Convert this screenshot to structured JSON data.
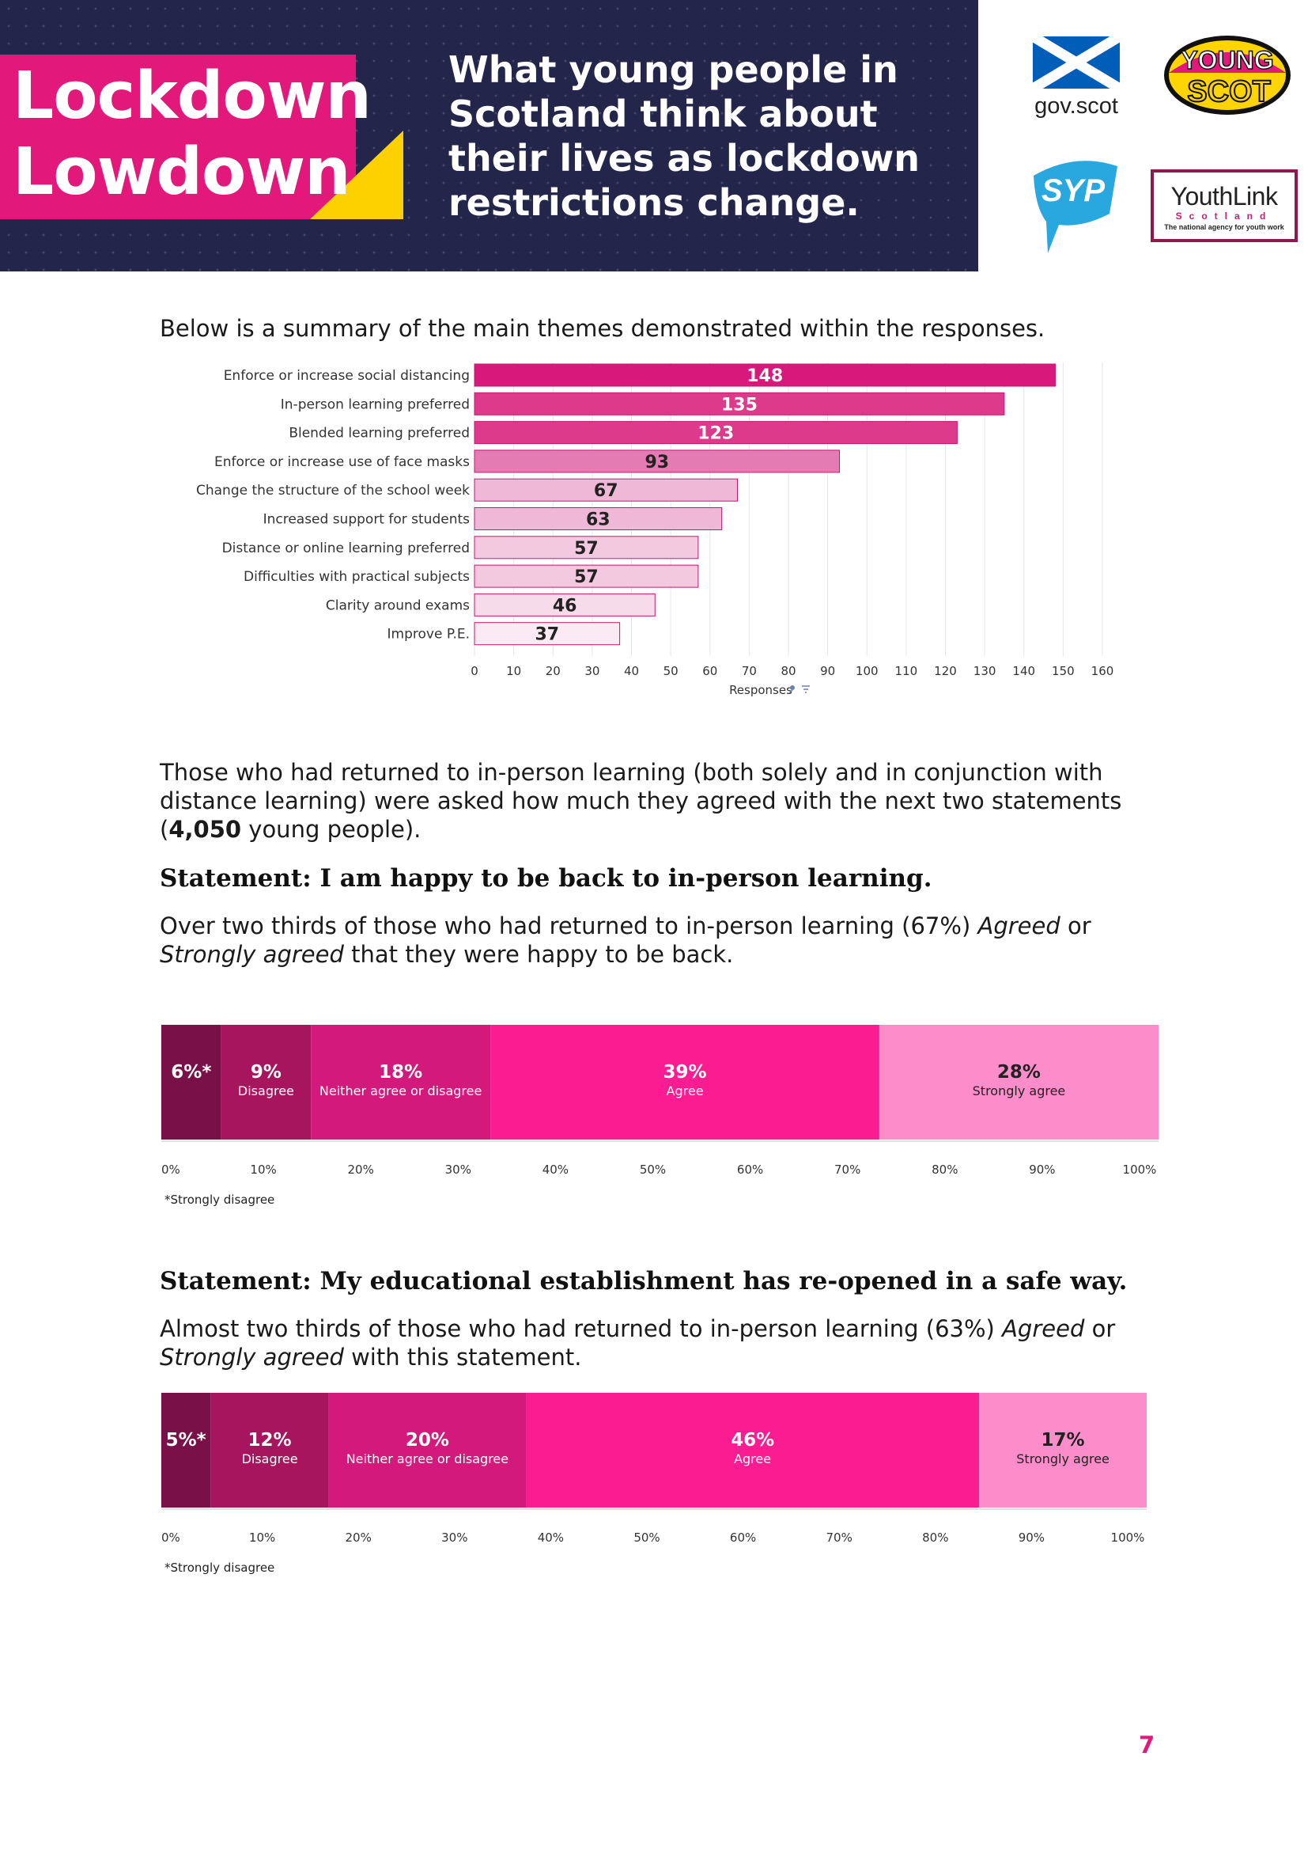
{
  "banner": {
    "title": "Lockdown\nLowdown",
    "tagline": "What young people in Scotland think about their lives as lockdown restrictions change.",
    "logos": {
      "govscot": "gov.scot",
      "youngscot_line1": "YOUNG",
      "youngscot_line2": "SCOT",
      "syp": "SYP",
      "youthlink_main": "YouthLink",
      "youthlink_sub": "Scotland",
      "youthlink_tag": "The national agency for youth work"
    }
  },
  "intro_text": "Below is a summary of the main themes demonstrated within the responses.",
  "chart_data": [
    {
      "type": "bar",
      "orientation": "horizontal",
      "categories": [
        "Enforce or increase social distancing",
        "In-person learning preferred",
        "Blended learning preferred",
        "Enforce or increase use of face masks",
        "Change the structure of the school week",
        "Increased support for students",
        "Distance or online learning preferred",
        "Difficulties with practical subjects",
        "Clarity around exams",
        "Improve P.E."
      ],
      "values": [
        148,
        135,
        123,
        93,
        67,
        63,
        57,
        57,
        46,
        37
      ],
      "colors": [
        "#d8197b",
        "#dd3a8b",
        "#dd3a8b",
        "#e57bb3",
        "#efb8d6",
        "#efb8d6",
        "#f3c9df",
        "#f3c9df",
        "#f6dcea",
        "#fbeaf3"
      ],
      "value_label_colors": [
        "#ffffff",
        "#ffffff",
        "#ffffff",
        "#222222",
        "#222222",
        "#222222",
        "#222222",
        "#222222",
        "#222222",
        "#222222"
      ],
      "xlabel": "Responses",
      "xlim": [
        0,
        160
      ],
      "xticks": [
        0,
        10,
        20,
        30,
        40,
        50,
        60,
        70,
        80,
        90,
        100,
        110,
        120,
        130,
        140,
        150,
        160
      ],
      "grid": true
    },
    {
      "type": "bar",
      "orientation": "stacked-100",
      "statement": "I am happy to be back to in-person learning.",
      "segments": [
        {
          "value": 6,
          "label_value": "6%*",
          "label": "",
          "color": "#7a1048",
          "text_color": "#ffffff"
        },
        {
          "value": 9,
          "label_value": "9%",
          "label": "Disagree",
          "color": "#a8155f",
          "text_color": "#ffffff"
        },
        {
          "value": 18,
          "label_value": "18%",
          "label": "Neither agree or disagree",
          "color": "#d31a7c",
          "text_color": "#ffffff"
        },
        {
          "value": 39,
          "label_value": "39%",
          "label": "Agree",
          "color": "#fb1c92",
          "text_color": "#ffffff"
        },
        {
          "value": 28,
          "label_value": "28%",
          "label": "Strongly agree",
          "color": "#fd8ccb",
          "text_color": "#222222"
        }
      ],
      "xticks": [
        "0%",
        "10%",
        "20%",
        "30%",
        "40%",
        "50%",
        "60%",
        "70%",
        "80%",
        "90%",
        "100%"
      ],
      "footnote": "*Strongly disagree"
    },
    {
      "type": "bar",
      "orientation": "stacked-100",
      "statement": "My educational establishment has re-opened in a safe way.",
      "segments": [
        {
          "value": 5,
          "label_value": "5%*",
          "label": "",
          "color": "#7a1048",
          "text_color": "#ffffff"
        },
        {
          "value": 12,
          "label_value": "12%",
          "label": "Disagree",
          "color": "#a8155f",
          "text_color": "#ffffff"
        },
        {
          "value": 20,
          "label_value": "20%",
          "label": "Neither agree or disagree",
          "color": "#d31a7c",
          "text_color": "#ffffff"
        },
        {
          "value": 46,
          "label_value": "46%",
          "label": "Agree",
          "color": "#fb1c92",
          "text_color": "#ffffff"
        },
        {
          "value": 17,
          "label_value": "17%",
          "label": "Strongly agree",
          "color": "#fd8ccb",
          "text_color": "#222222"
        }
      ],
      "xticks": [
        "0%",
        "10%",
        "20%",
        "30%",
        "40%",
        "50%",
        "60%",
        "70%",
        "80%",
        "90%",
        "100%"
      ],
      "footnote": "*Strongly disagree"
    }
  ],
  "section": {
    "para_start": "Those who had returned to in-person learning (both solely and in conjunction with distance learning) were asked how much they agreed with the next two statements (",
    "para_bold": "4,050",
    "para_end": " young people).",
    "statement1_heading": "Statement: I am happy to be back to in-person learning.",
    "statement1_text_a": "Over two thirds of those who had returned to in-person learning (67%) ",
    "statement1_text_agreed": "Agreed",
    "statement1_text_or": " or ",
    "statement1_text_strongly": "Strongly agreed",
    "statement1_text_end": " that they were happy to be back.",
    "statement2_heading": "Statement: My educational establishment has re-opened in a safe way.",
    "statement2_text_a": "Almost two thirds of those who had returned to in-person learning (63%) ",
    "statement2_text_agreed": "Agreed",
    "statement2_text_or": " or ",
    "statement2_text_strongly": "Strongly agreed",
    "statement2_text_end": " with this statement."
  },
  "page_number": "7",
  "colors": {
    "brand_pink": "#e2197a",
    "banner_navy": "#23264a",
    "accent_yellow": "#fdd000"
  }
}
